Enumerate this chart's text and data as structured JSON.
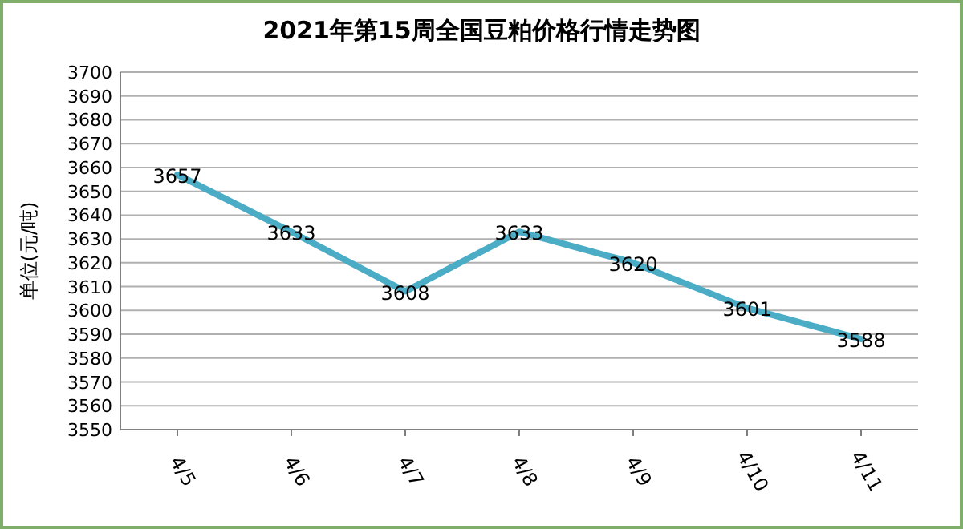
{
  "chart_data": {
    "type": "line",
    "title": "2021年第15周全国豆粕价格行情走势图",
    "ylabel": "单位(元/吨)",
    "categories": [
      "4/5",
      "4/6",
      "4/7",
      "4/8",
      "4/9",
      "4/10",
      "4/11"
    ],
    "values": [
      3657,
      3633,
      3608,
      3633,
      3620,
      3601,
      3588
    ],
    "color": "#4bacc6",
    "ylim": [
      3550,
      3700
    ],
    "yticks": [
      3550,
      3560,
      3570,
      3580,
      3590,
      3600,
      3610,
      3620,
      3630,
      3640,
      3650,
      3660,
      3670,
      3680,
      3690,
      3700
    ],
    "grid": "y",
    "data_labels": true,
    "marker": "none",
    "line_style": "solid"
  }
}
